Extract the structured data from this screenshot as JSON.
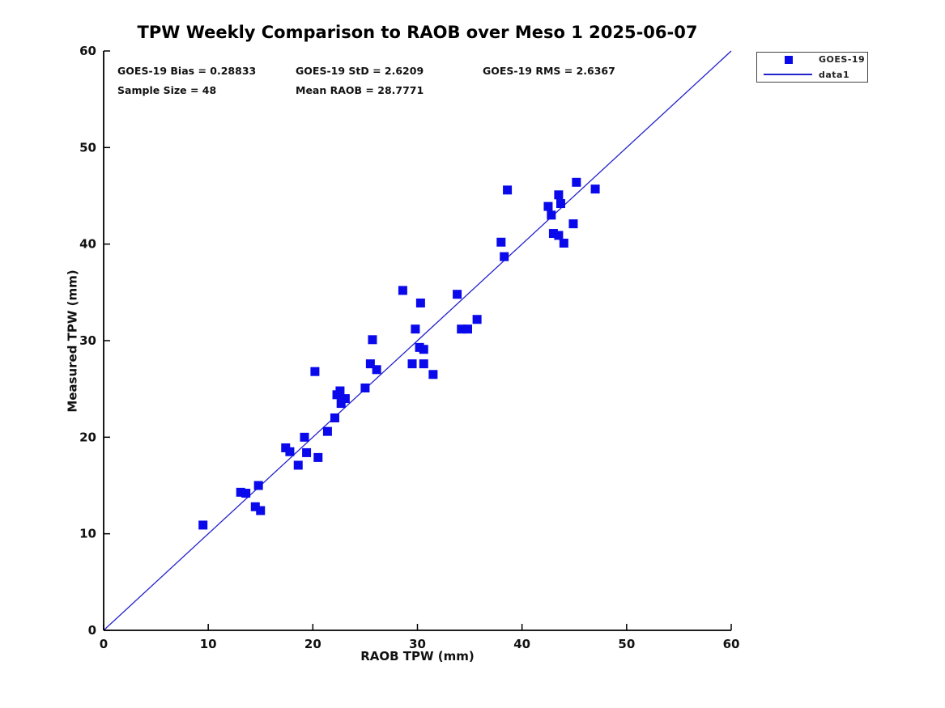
{
  "chart_data": {
    "type": "scatter",
    "title": "TPW Weekly Comparison to RAOB over Meso 1 2025-06-07",
    "xlabel": "RAOB TPW (mm)",
    "ylabel": "Measured TPW (mm)",
    "xlim": [
      0,
      60
    ],
    "ylim": [
      0,
      60
    ],
    "xticks": [
      0,
      10,
      20,
      30,
      40,
      50,
      60
    ],
    "yticks": [
      0,
      10,
      20,
      30,
      40,
      50,
      60
    ],
    "grid": false,
    "legend_position": "outside-top-right",
    "colors": {
      "marker": "#0909EB",
      "line": "#2222CC",
      "axis": "#000000",
      "text": "#111111"
    },
    "series": [
      {
        "name": "GOES-19",
        "kind": "scatter",
        "marker": "square",
        "marker_size": 11,
        "points": [
          [
            9.5,
            10.9
          ],
          [
            13.1,
            14.3
          ],
          [
            13.6,
            14.2
          ],
          [
            14.8,
            15.0
          ],
          [
            14.5,
            12.8
          ],
          [
            15.0,
            12.4
          ],
          [
            17.4,
            18.9
          ],
          [
            17.8,
            18.5
          ],
          [
            18.6,
            17.1
          ],
          [
            19.2,
            20.0
          ],
          [
            19.4,
            18.4
          ],
          [
            20.5,
            17.9
          ],
          [
            21.4,
            20.6
          ],
          [
            20.2,
            26.8
          ],
          [
            22.1,
            22.0
          ],
          [
            22.6,
            24.8
          ],
          [
            22.3,
            24.4
          ],
          [
            23.1,
            24.0
          ],
          [
            22.7,
            23.5
          ],
          [
            25.0,
            25.1
          ],
          [
            25.7,
            30.1
          ],
          [
            25.5,
            27.6
          ],
          [
            26.1,
            27.0
          ],
          [
            28.6,
            35.2
          ],
          [
            29.5,
            27.6
          ],
          [
            29.8,
            31.2
          ],
          [
            30.2,
            29.3
          ],
          [
            30.6,
            29.1
          ],
          [
            30.6,
            27.6
          ],
          [
            31.5,
            26.5
          ],
          [
            30.3,
            33.9
          ],
          [
            33.8,
            34.8
          ],
          [
            34.2,
            31.2
          ],
          [
            34.8,
            31.2
          ],
          [
            35.7,
            32.2
          ],
          [
            38.0,
            40.2
          ],
          [
            38.3,
            38.7
          ],
          [
            38.6,
            45.6
          ],
          [
            42.5,
            43.9
          ],
          [
            42.8,
            43.0
          ],
          [
            43.5,
            45.1
          ],
          [
            43.7,
            44.2
          ],
          [
            43.0,
            41.1
          ],
          [
            43.5,
            40.9
          ],
          [
            44.0,
            40.1
          ],
          [
            44.9,
            42.1
          ],
          [
            45.2,
            46.4
          ],
          [
            47.0,
            45.7
          ]
        ]
      },
      {
        "name": "data1",
        "kind": "line",
        "points": [
          [
            0,
            0
          ],
          [
            60,
            60
          ]
        ]
      }
    ],
    "annotations": [
      {
        "text": "GOES-19 Bias = 0.28833",
        "x": 1.32,
        "y": 57.9
      },
      {
        "text": "GOES-19 StD = 2.6209",
        "x": 18.35,
        "y": 57.9
      },
      {
        "text": "GOES-19 RMS = 2.6367",
        "x": 36.23,
        "y": 57.9
      },
      {
        "text": "Sample Size = 48",
        "x": 1.32,
        "y": 55.9
      },
      {
        "text": "Mean RAOB = 28.7771",
        "x": 18.35,
        "y": 55.9
      }
    ],
    "stats": {
      "bias": 0.28833,
      "std": 2.6209,
      "rms": 2.6367,
      "sample_size": 48,
      "mean_raob": 28.7771
    }
  }
}
